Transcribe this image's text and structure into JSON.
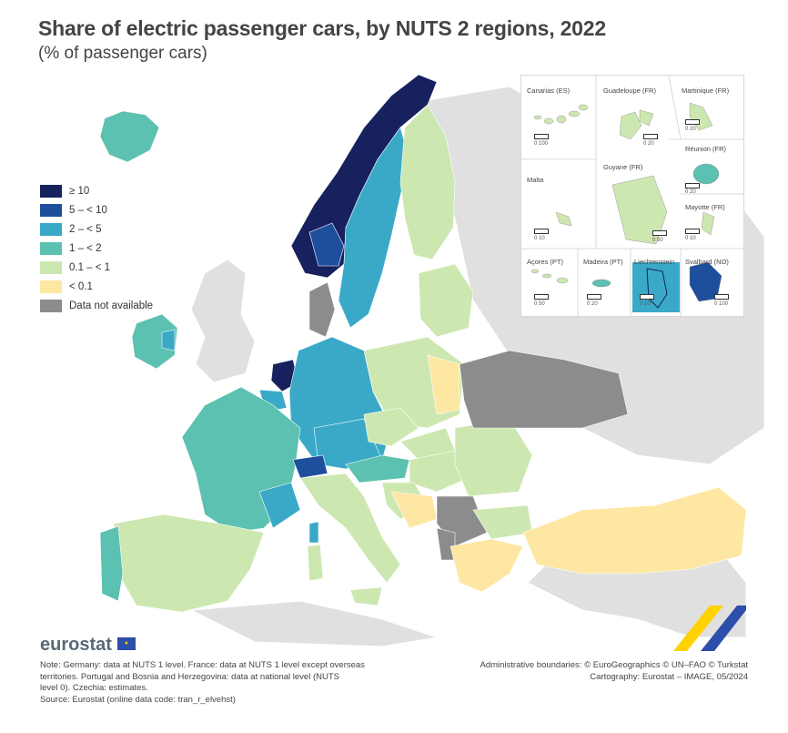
{
  "header": {
    "title": "Share of electric passenger cars, by NUTS 2 regions, 2022",
    "subtitle": "(% of passenger cars)"
  },
  "legend": {
    "items": [
      {
        "label": "≥ 10",
        "color": "#17215e"
      },
      {
        "label": "5 – < 10",
        "color": "#1e4f9c"
      },
      {
        "label": "2 – < 5",
        "color": "#3aa9c8"
      },
      {
        "label": "1 – < 2",
        "color": "#5cc1b0"
      },
      {
        "label": "0.1 – < 1",
        "color": "#cde7b0"
      },
      {
        "label": "< 0.1",
        "color": "#fde7a3"
      },
      {
        "label": "Data not available",
        "color": "#8c8c8c"
      }
    ]
  },
  "insets": [
    {
      "name": "Canarias (ES)",
      "scale": "0   100"
    },
    {
      "name": "Guadeloupe (FR)",
      "scale": "0   20"
    },
    {
      "name": "Martinique (FR)",
      "scale": "0   20"
    },
    {
      "name": "Réunion (FR)",
      "scale": "0   20"
    },
    {
      "name": "Malta",
      "scale": "0   10"
    },
    {
      "name": "Guyane (FR)",
      "scale": "0   50"
    },
    {
      "name": "Mayotte (FR)",
      "scale": "0   10"
    },
    {
      "name": "Açores (PT)",
      "scale": "0   50"
    },
    {
      "name": "Madeira (PT)",
      "scale": "0   20"
    },
    {
      "name": "Liechtenstein",
      "scale": "0   10"
    },
    {
      "name": "Svalbard (NO)",
      "scale": "0   100"
    }
  ],
  "footer": {
    "logo": "eurostat",
    "note_lines": [
      "Note: Germany: data at NUTS 1 level. France: data at NUTS 1 level except overseas",
      "territories. Portugal and Bosnia and Herzegovina: data at national level (NUTS",
      "level 0). Czechia: estimates.",
      "Source: Eurostat (online data code: tran_r_elvehst)"
    ],
    "credit_lines": [
      "Administrative boundaries: © EuroGeographics © UN–FAO © Turkstat",
      "Cartography: Eurostat – IMAGE, 05/2024"
    ]
  }
}
